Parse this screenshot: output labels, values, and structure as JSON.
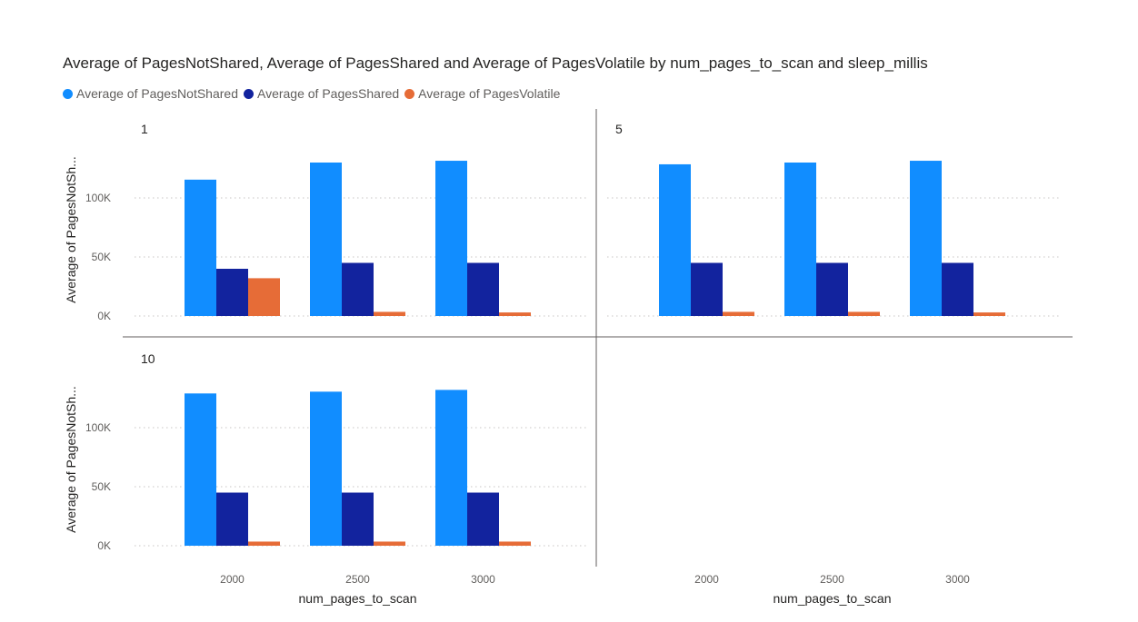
{
  "chart_data": {
    "type": "bar",
    "title": "Average of PagesNotShared, Average of PagesShared and Average of PagesVolatile by num_pages_to_scan and sleep_millis",
    "xlabel": "num_pages_to_scan",
    "ylabel": "Average of PagesNotSh...",
    "categories": [
      "2000",
      "2500",
      "3000"
    ],
    "y_ticks": [
      {
        "value": 0,
        "label": "0K"
      },
      {
        "value": 50000,
        "label": "50K"
      },
      {
        "value": 100000,
        "label": "100K"
      }
    ],
    "ylim": [
      0,
      135000
    ],
    "grid": true,
    "legend_position": "top-left",
    "series": [
      {
        "name": "Average of PagesNotShared",
        "color": "#118DFF"
      },
      {
        "name": "Average of PagesShared",
        "color": "#12239E"
      },
      {
        "name": "Average of PagesVolatile",
        "color": "#E66C37"
      }
    ],
    "panels": [
      {
        "label": "1",
        "values": [
          [
            115500,
            130000,
            131500
          ],
          [
            40000,
            45000,
            45000
          ],
          [
            32000,
            3500,
            3000
          ]
        ]
      },
      {
        "label": "5",
        "values": [
          [
            128500,
            130000,
            131500
          ],
          [
            45000,
            45000,
            45000
          ],
          [
            3500,
            3500,
            3000
          ]
        ]
      },
      {
        "label": "10",
        "values": [
          [
            129000,
            130500,
            132000
          ],
          [
            45000,
            45000,
            45000
          ],
          [
            3500,
            3500,
            3500
          ]
        ]
      }
    ]
  }
}
